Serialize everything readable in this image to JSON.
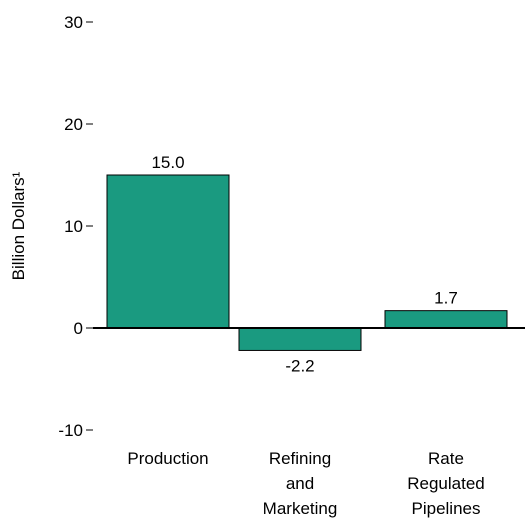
{
  "chart_data": {
    "type": "bar",
    "categories": [
      [
        "Production"
      ],
      [
        "Refining",
        "and",
        "Marketing"
      ],
      [
        "Rate",
        "Regulated",
        "Pipelines"
      ]
    ],
    "values": [
      15.0,
      -2.2,
      1.7
    ],
    "value_labels": [
      "15.0",
      "-2.2",
      "1.7"
    ],
    "ylabel": "Billion Dollars¹",
    "xlabel": "",
    "title": "",
    "ylim": [
      -10,
      30
    ],
    "yticks": [
      -10,
      0,
      10,
      20,
      30
    ],
    "ytick_labels": [
      "-10",
      "0",
      "10",
      "20",
      "30"
    ],
    "bar_color": "#1a9a80",
    "bar_edge_color": "#000000",
    "grid": false,
    "legend": "none"
  }
}
